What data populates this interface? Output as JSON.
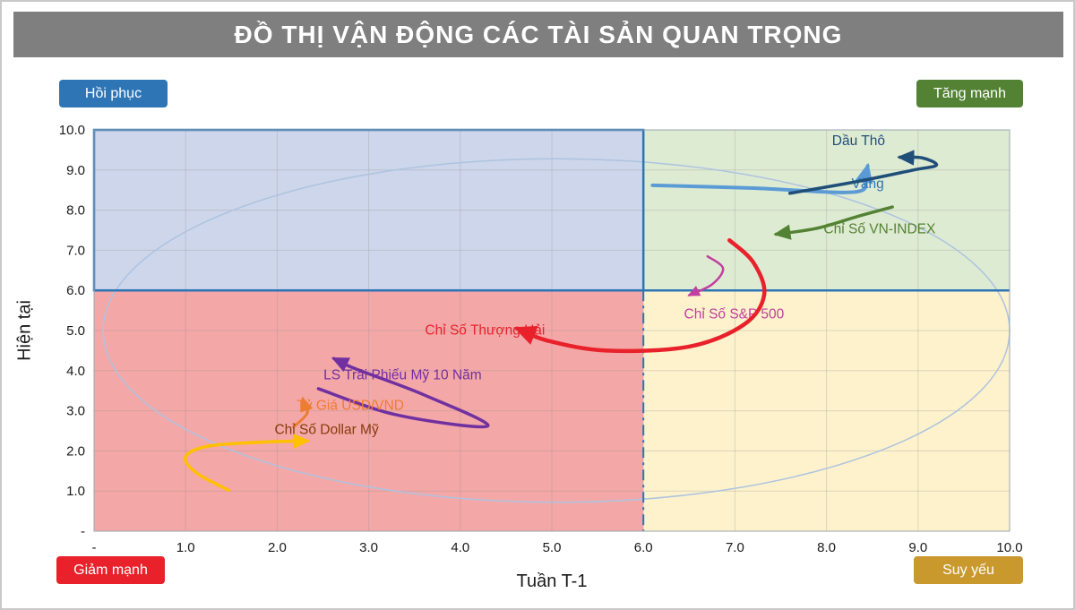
{
  "page": {
    "title": "ĐỒ THỊ VẬN ĐỘNG CÁC TÀI SẢN QUAN TRỌNG",
    "title_bg": "#7f7f7f",
    "title_color": "#ffffff"
  },
  "quadrant_labels": {
    "top_left": {
      "text": "Hồi phục",
      "bg": "#2e75b6"
    },
    "top_right": {
      "text": "Tăng mạnh",
      "bg": "#548235"
    },
    "bottom_left": {
      "text": "Giảm mạnh",
      "bg": "#e8212b"
    },
    "bottom_right": {
      "text": "Suy yếu",
      "bg": "#c9992e"
    }
  },
  "chart_data": {
    "type": "scatter",
    "title": "ĐỒ THỊ VẬN ĐỘNG CÁC TÀI SẢN QUAN TRỌNG",
    "xlabel": "Tuần T-1",
    "ylabel": "Hiện tại",
    "xlim": [
      0,
      10
    ],
    "ylim": [
      0,
      10
    ],
    "x_ticks": [
      "-",
      "1.0",
      "2.0",
      "3.0",
      "4.0",
      "5.0",
      "6.0",
      "7.0",
      "8.0",
      "9.0",
      "10.0"
    ],
    "y_ticks": [
      "-",
      "1.0",
      "2.0",
      "3.0",
      "4.0",
      "5.0",
      "6.0",
      "7.0",
      "8.0",
      "9.0",
      "10.0"
    ],
    "quadrant_split": {
      "x": 6,
      "y": 6
    },
    "quadrant_fills": {
      "top_left": "#cdd6ea",
      "top_right": "#deebd3",
      "bottom_left": "#f4a7a7",
      "bottom_right": "#fdf2cc"
    },
    "grid_color": "#8c8c8c",
    "boundary_color": "#2e75b6",
    "plot_border_color": "#9aa5b1",
    "ellipse": {
      "cx": 5.05,
      "cy": 5.0,
      "rx": 4.95,
      "ry": 4.28,
      "color": "#aec3e0"
    },
    "series": [
      {
        "name": "Vàng",
        "color": "#5b9bd5",
        "width": 4,
        "points": [
          [
            6.1,
            8.62
          ],
          [
            7.2,
            8.55
          ],
          [
            8.3,
            8.45
          ],
          [
            8.42,
            8.8
          ],
          [
            8.45,
            9.1
          ]
        ],
        "label": {
          "x": 8.45,
          "y": 8.55,
          "color": "#2e75b6"
        }
      },
      {
        "name": "Dầu Thô",
        "color": "#1f4e79",
        "width": 3.5,
        "points": [
          [
            7.6,
            8.42
          ],
          [
            8.35,
            8.72
          ],
          [
            8.95,
            9.0
          ],
          [
            9.2,
            9.12
          ],
          [
            9.05,
            9.3
          ],
          [
            8.8,
            9.32
          ]
        ],
        "label": {
          "x": 8.35,
          "y": 9.62,
          "color": "#1f4e79"
        }
      },
      {
        "name": "Chỉ Số VN-INDEX",
        "color": "#548235",
        "width": 3.5,
        "points": [
          [
            8.72,
            8.08
          ],
          [
            8.35,
            7.85
          ],
          [
            7.9,
            7.55
          ],
          [
            7.45,
            7.4
          ]
        ],
        "label": {
          "x": 8.58,
          "y": 7.42,
          "color": "#548235"
        }
      },
      {
        "name": "Chỉ Số S&P 500",
        "color": "#c13fa0",
        "width": 2.5,
        "points": [
          [
            6.7,
            6.85
          ],
          [
            6.87,
            6.55
          ],
          [
            6.75,
            6.15
          ],
          [
            6.5,
            5.88
          ]
        ],
        "label": {
          "x": 6.99,
          "y": 5.3,
          "color": "#c13fa0"
        }
      },
      {
        "name": "Chỉ Số Thượng Hải",
        "color": "#e8212b",
        "width": 4.5,
        "points": [
          [
            6.94,
            7.25
          ],
          [
            7.2,
            6.7
          ],
          [
            7.32,
            5.9
          ],
          [
            7.1,
            5.15
          ],
          [
            6.5,
            4.6
          ],
          [
            5.6,
            4.5
          ],
          [
            4.95,
            4.75
          ],
          [
            4.62,
            5.05
          ]
        ],
        "label": {
          "x": 4.27,
          "y": 4.9,
          "color": "#e8212b"
        }
      },
      {
        "name": "LS Trái Phiếu Mỹ 10 Năm",
        "color": "#7030a0",
        "width": 3.5,
        "points": [
          [
            2.45,
            3.55
          ],
          [
            3.3,
            2.9
          ],
          [
            4.3,
            2.62
          ],
          [
            3.6,
            3.4
          ],
          [
            2.85,
            4.05
          ],
          [
            2.62,
            4.3
          ]
        ],
        "label": {
          "x": 3.37,
          "y": 3.78,
          "color": "#7030a0"
        }
      },
      {
        "name": "Tỷ Giá USD/VND",
        "color": "#ed7d31",
        "width": 3,
        "points": [
          [
            2.18,
            2.6
          ],
          [
            2.33,
            2.95
          ],
          [
            2.28,
            3.3
          ]
        ],
        "label": {
          "x": 2.8,
          "y": 3.02,
          "color": "#ed7d31"
        }
      },
      {
        "name": "Chỉ Số Dollar Mỹ",
        "color": "#ffc000",
        "width": 3.5,
        "points": [
          [
            1.47,
            1.02
          ],
          [
            1.12,
            1.45
          ],
          [
            1.0,
            1.85
          ],
          [
            1.25,
            2.12
          ],
          [
            1.85,
            2.22
          ],
          [
            2.33,
            2.25
          ]
        ],
        "label": {
          "x": 2.54,
          "y": 2.42,
          "color": "#843c0c"
        }
      }
    ]
  }
}
